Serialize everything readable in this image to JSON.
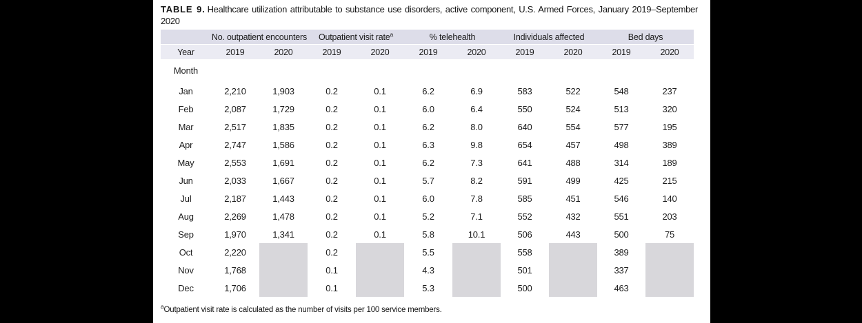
{
  "colors": {
    "group_band": "#dddde9",
    "year_band": "#ebebf3",
    "shaded_cell": "#d8d7db",
    "page_background": "#000000",
    "panel_background": "#ffffff"
  },
  "title": {
    "label": "TABLE 9.",
    "text": "Healthcare utilization attributable to substance use disorders, active component, U.S. Armed Forces, January 2019–September 2020"
  },
  "table": {
    "column_groups": [
      {
        "label": "No. outpatient encounters",
        "sup": ""
      },
      {
        "label": "Outpatient visit rate",
        "sup": "a"
      },
      {
        "label": "% telehealth",
        "sup": ""
      },
      {
        "label": "Individuals affected",
        "sup": ""
      },
      {
        "label": "Bed days",
        "sup": ""
      }
    ],
    "year_label": "Year",
    "years": [
      "2019",
      "2020",
      "2019",
      "2020",
      "2019",
      "2020",
      "2019",
      "2020",
      "2019",
      "2020"
    ],
    "month_header": "Month",
    "rows": [
      {
        "month": "Jan",
        "values": [
          "2,210",
          "1,903",
          "0.2",
          "0.1",
          "6.2",
          "6.9",
          "583",
          "522",
          "548",
          "237"
        ]
      },
      {
        "month": "Feb",
        "values": [
          "2,087",
          "1,729",
          "0.2",
          "0.1",
          "6.0",
          "6.4",
          "550",
          "524",
          "513",
          "320"
        ]
      },
      {
        "month": "Mar",
        "values": [
          "2,517",
          "1,835",
          "0.2",
          "0.1",
          "6.2",
          "8.0",
          "640",
          "554",
          "577",
          "195"
        ]
      },
      {
        "month": "Apr",
        "values": [
          "2,747",
          "1,586",
          "0.2",
          "0.1",
          "6.3",
          "9.8",
          "654",
          "457",
          "498",
          "389"
        ]
      },
      {
        "month": "May",
        "values": [
          "2,553",
          "1,691",
          "0.2",
          "0.1",
          "6.2",
          "7.3",
          "641",
          "488",
          "314",
          "189"
        ]
      },
      {
        "month": "Jun",
        "values": [
          "2,033",
          "1,667",
          "0.2",
          "0.1",
          "5.7",
          "8.2",
          "591",
          "499",
          "425",
          "215"
        ]
      },
      {
        "month": "Jul",
        "values": [
          "2,187",
          "1,443",
          "0.2",
          "0.1",
          "6.0",
          "7.8",
          "585",
          "451",
          "546",
          "140"
        ]
      },
      {
        "month": "Aug",
        "values": [
          "2,269",
          "1,478",
          "0.2",
          "0.1",
          "5.2",
          "7.1",
          "552",
          "432",
          "551",
          "203"
        ]
      },
      {
        "month": "Sep",
        "values": [
          "1,970",
          "1,341",
          "0.2",
          "0.1",
          "5.8",
          "10.1",
          "506",
          "443",
          "500",
          "75"
        ]
      },
      {
        "month": "Oct",
        "values": [
          "2,220",
          null,
          "0.2",
          null,
          "5.5",
          null,
          "558",
          null,
          "389",
          null
        ]
      },
      {
        "month": "Nov",
        "values": [
          "1,768",
          null,
          "0.1",
          null,
          "4.3",
          null,
          "501",
          null,
          "337",
          null
        ]
      },
      {
        "month": "Dec",
        "values": [
          "1,706",
          null,
          "0.1",
          null,
          "5.3",
          null,
          "500",
          null,
          "463",
          null
        ]
      }
    ]
  },
  "footnote": {
    "sup": "a",
    "text": "Outpatient visit rate is calculated as the number of visits per 100 service members."
  }
}
